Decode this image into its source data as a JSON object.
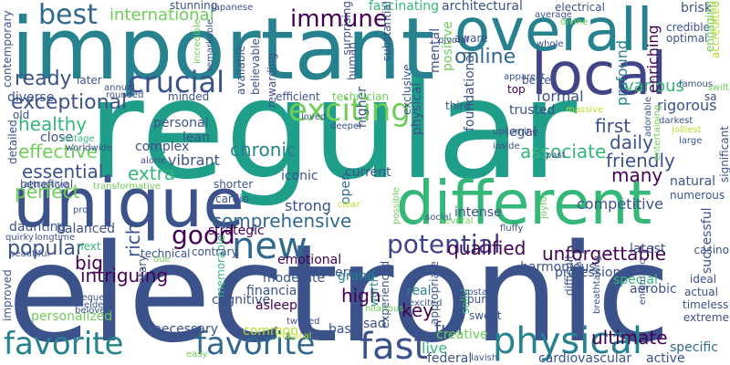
{
  "palette": {
    "purple": "#440154",
    "indigo": "#3b528b",
    "slate": "#414487",
    "blue": "#31688e",
    "teal": "#21918c",
    "cyan": "#26828e",
    "green": "#35b779",
    "lime": "#6ece58",
    "yellow": "#b5de2b",
    "sea": "#1f9e89"
  },
  "words": [
    {
      "text": "electronic",
      "color": "indigo"
    },
    {
      "text": "regular",
      "color": "sea"
    },
    {
      "text": "important",
      "color": "cyan"
    },
    {
      "text": "local",
      "color": "slate"
    },
    {
      "text": "overall",
      "color": "cyan"
    },
    {
      "text": "unique",
      "color": "indigo"
    },
    {
      "text": "different",
      "color": "green"
    },
    {
      "text": "favorite",
      "color": "cyan"
    },
    {
      "text": "favorite",
      "color": "blue"
    },
    {
      "text": "fast",
      "color": "indigo"
    },
    {
      "text": "physical",
      "color": "cyan"
    },
    {
      "text": "new",
      "color": "blue"
    },
    {
      "text": "exciting",
      "color": "lime"
    },
    {
      "text": "crucial",
      "color": "indigo"
    },
    {
      "text": "best",
      "color": "blue"
    },
    {
      "text": "immune",
      "color": "purple"
    },
    {
      "text": "potential",
      "color": "slate"
    },
    {
      "text": "good",
      "color": "purple"
    },
    {
      "text": "comprehensive",
      "color": "blue"
    },
    {
      "text": "international",
      "color": "lime"
    },
    {
      "text": "online",
      "color": "blue"
    },
    {
      "text": "ready",
      "color": "indigo"
    },
    {
      "text": "exceptional",
      "color": "indigo"
    },
    {
      "text": "healthy",
      "color": "green"
    },
    {
      "text": "associate",
      "color": "green"
    },
    {
      "text": "chronic",
      "color": "cyan"
    },
    {
      "text": "popular",
      "color": "indigo"
    },
    {
      "text": "unforgettable",
      "color": "purple"
    },
    {
      "text": "extra",
      "color": "green"
    },
    {
      "text": "effective",
      "color": "lime"
    },
    {
      "text": "essential",
      "color": "indigo"
    },
    {
      "text": "perfect",
      "color": "lime"
    },
    {
      "text": "qualified",
      "color": "purple"
    },
    {
      "text": "ultimate",
      "color": "purple"
    },
    {
      "text": "first",
      "color": "indigo"
    },
    {
      "text": "daily",
      "color": "indigo"
    },
    {
      "text": "friendly",
      "color": "indigo"
    },
    {
      "text": "many",
      "color": "purple"
    },
    {
      "text": "competitive",
      "color": "indigo"
    },
    {
      "text": "strong",
      "color": "indigo"
    },
    {
      "text": "intriguing",
      "color": "purple"
    },
    {
      "text": "full",
      "color": "indigo"
    },
    {
      "text": "key",
      "color": "purple"
    },
    {
      "text": "high",
      "color": "purple"
    },
    {
      "text": "live",
      "color": "green"
    },
    {
      "text": "rich",
      "color": "indigo"
    },
    {
      "text": "big",
      "color": "purple"
    },
    {
      "text": "physical",
      "color": "indigo"
    },
    {
      "text": "mental",
      "color": "indigo"
    },
    {
      "text": "higher",
      "color": "indigo"
    },
    {
      "text": "vibrant",
      "color": "indigo"
    },
    {
      "text": "positive",
      "color": "lime"
    },
    {
      "text": "formal",
      "color": "indigo"
    },
    {
      "text": "various",
      "color": "green"
    },
    {
      "text": "architectural",
      "color": "indigo"
    },
    {
      "text": "fascinating",
      "color": "green"
    },
    {
      "text": "rigorous",
      "color": "indigo"
    },
    {
      "text": "profound",
      "color": "cyan"
    },
    {
      "text": "enriching",
      "color": "purple"
    },
    {
      "text": "latest",
      "color": "indigo"
    },
    {
      "text": "special",
      "color": "green"
    },
    {
      "text": "specific",
      "color": "blue"
    },
    {
      "text": "stunning",
      "color": "indigo"
    },
    {
      "text": "balanced",
      "color": "indigo"
    },
    {
      "text": "close",
      "color": "indigo"
    },
    {
      "text": "cognitive",
      "color": "indigo"
    },
    {
      "text": "financial",
      "color": "indigo"
    },
    {
      "text": "moderate",
      "color": "indigo"
    },
    {
      "text": "asleep",
      "color": "purple"
    },
    {
      "text": "modern",
      "color": "indigo"
    },
    {
      "text": "emotional",
      "color": "purple"
    },
    {
      "text": "strategic",
      "color": "purple"
    },
    {
      "text": "trusted",
      "color": "indigo"
    },
    {
      "text": "top",
      "color": "purple"
    },
    {
      "text": "better",
      "color": "indigo"
    },
    {
      "text": "legal",
      "color": "indigo"
    },
    {
      "text": "personal",
      "color": "indigo"
    },
    {
      "text": "complex",
      "color": "indigo"
    },
    {
      "text": "lean",
      "color": "indigo"
    },
    {
      "text": "open",
      "color": "blue"
    },
    {
      "text": "iconic",
      "color": "indigo"
    },
    {
      "text": "current",
      "color": "indigo"
    },
    {
      "text": "intense",
      "color": "indigo"
    },
    {
      "text": "real",
      "color": "cyan"
    },
    {
      "text": "grand",
      "color": "cyan"
    },
    {
      "text": "sad",
      "color": "indigo"
    },
    {
      "text": "basic",
      "color": "indigo"
    },
    {
      "text": "common",
      "color": "yellow"
    },
    {
      "text": "creative",
      "color": "lime"
    },
    {
      "text": "federal",
      "color": "indigo"
    },
    {
      "text": "cardiovascular",
      "color": "indigo"
    },
    {
      "text": "active",
      "color": "indigo"
    },
    {
      "text": "aerobic",
      "color": "indigo"
    },
    {
      "text": "successful",
      "color": "indigo"
    },
    {
      "text": "professional",
      "color": "indigo"
    },
    {
      "text": "diverse",
      "color": "indigo"
    },
    {
      "text": "old",
      "color": "indigo"
    },
    {
      "text": "detailed",
      "color": "indigo"
    },
    {
      "text": "beneficial",
      "color": "indigo"
    },
    {
      "text": "daunting",
      "color": "indigo"
    },
    {
      "text": "improved",
      "color": "indigo"
    },
    {
      "text": "personalized",
      "color": "lime"
    },
    {
      "text": "necessary",
      "color": "indigo"
    },
    {
      "text": "sedentary",
      "color": "indigo"
    },
    {
      "text": "memorable",
      "color": "green"
    },
    {
      "text": "worth",
      "color": "cyan"
    },
    {
      "text": "experienced",
      "color": "indigo"
    },
    {
      "text": "appropriate",
      "color": "indigo"
    },
    {
      "text": "solid",
      "color": "green"
    },
    {
      "text": "pure",
      "color": "indigo"
    },
    {
      "text": "sweet",
      "color": "indigo"
    },
    {
      "text": "ideal",
      "color": "indigo"
    },
    {
      "text": "actual",
      "color": "indigo"
    },
    {
      "text": "timeless",
      "color": "indigo"
    },
    {
      "text": "extreme",
      "color": "indigo"
    },
    {
      "text": "harmonious",
      "color": "indigo"
    },
    {
      "text": "natural",
      "color": "indigo"
    },
    {
      "text": "numerous",
      "color": "indigo"
    },
    {
      "text": "foundational",
      "color": "indigo"
    },
    {
      "text": "exclusive",
      "color": "indigo"
    },
    {
      "text": "human",
      "color": "indigo"
    },
    {
      "text": "average",
      "color": "indigo"
    },
    {
      "text": "electrical",
      "color": "indigo"
    },
    {
      "text": "brisk",
      "color": "indigo"
    },
    {
      "text": "credible",
      "color": "indigo"
    },
    {
      "text": "optimal",
      "color": "indigo"
    },
    {
      "text": "engaging",
      "color": "lime"
    },
    {
      "text": "accredited",
      "color": "yellow"
    },
    {
      "text": "famous",
      "color": "indigo"
    },
    {
      "text": "contemporary",
      "color": "indigo"
    },
    {
      "text": "later",
      "color": "indigo"
    },
    {
      "text": "annual",
      "color": "indigo"
    },
    {
      "text": "rounded",
      "color": "indigo"
    },
    {
      "text": "minded",
      "color": "indigo"
    },
    {
      "text": "available",
      "color": "indigo"
    },
    {
      "text": "believable",
      "color": "indigo"
    },
    {
      "text": "rewarding",
      "color": "indigo"
    },
    {
      "text": "remarkable",
      "color": "indigo"
    },
    {
      "text": "incredible",
      "color": "lime"
    },
    {
      "text": "efficient",
      "color": "indigo"
    },
    {
      "text": "technician",
      "color": "lime"
    },
    {
      "text": "japanese",
      "color": "indigo"
    },
    {
      "text": "surprising",
      "color": "indigo"
    },
    {
      "text": "substantial",
      "color": "indigo"
    },
    {
      "text": "divine",
      "color": "lime"
    },
    {
      "text": "pivotal",
      "color": "indigo"
    },
    {
      "text": "aware",
      "color": "indigo"
    },
    {
      "text": "whole",
      "color": "indigo"
    },
    {
      "text": "apparent",
      "color": "indigo"
    },
    {
      "text": "massive",
      "color": "yellow"
    },
    {
      "text": "third",
      "color": "indigo"
    },
    {
      "text": "loved",
      "color": "indigo"
    },
    {
      "text": "deeper",
      "color": "indigo"
    },
    {
      "text": "upcoming",
      "color": "indigo"
    },
    {
      "text": "inside",
      "color": "indigo"
    },
    {
      "text": "past",
      "color": "indigo"
    },
    {
      "text": "darkest",
      "color": "indigo"
    },
    {
      "text": "jolliest",
      "color": "yellow"
    },
    {
      "text": "large",
      "color": "indigo"
    },
    {
      "text": "adorable",
      "color": "indigo"
    },
    {
      "text": "entertaining",
      "color": "lime"
    },
    {
      "text": "vintage",
      "color": "green"
    },
    {
      "text": "worldwide",
      "color": "indigo"
    },
    {
      "text": "transformative",
      "color": "lime"
    },
    {
      "text": "shorter",
      "color": "indigo"
    },
    {
      "text": "cardio",
      "color": "indigo"
    },
    {
      "text": "technical",
      "color": "indigo"
    },
    {
      "text": "pro",
      "color": "indigo"
    },
    {
      "text": "quirky",
      "color": "indigo"
    },
    {
      "text": "longtime",
      "color": "indigo"
    },
    {
      "text": "beautiful",
      "color": "indigo"
    },
    {
      "text": "next",
      "color": "green"
    },
    {
      "text": "contrary",
      "color": "indigo"
    },
    {
      "text": "due",
      "color": "lime"
    },
    {
      "text": "alone",
      "color": "indigo"
    },
    {
      "text": "frequent",
      "color": "indigo"
    },
    {
      "text": "elderly",
      "color": "indigo"
    },
    {
      "text": "attractive",
      "color": "indigo"
    },
    {
      "text": "beloved",
      "color": "indigo"
    },
    {
      "text": "easy",
      "color": "lime"
    },
    {
      "text": "twisted",
      "color": "indigo"
    },
    {
      "text": "magical",
      "color": "yellow"
    },
    {
      "text": "hilarious",
      "color": "lime"
    },
    {
      "text": "excited",
      "color": "indigo"
    },
    {
      "text": "upstart",
      "color": "indigo"
    },
    {
      "text": "clear",
      "color": "yellow"
    },
    {
      "text": "social",
      "color": "indigo"
    },
    {
      "text": "several",
      "color": "lime"
    },
    {
      "text": "possible",
      "color": "lime"
    },
    {
      "text": "joyful",
      "color": "lime"
    },
    {
      "text": "fluffy",
      "color": "indigo"
    },
    {
      "text": "difficult",
      "color": "indigo"
    },
    {
      "text": "promotional",
      "color": "indigo"
    },
    {
      "text": "breathtaking",
      "color": "indigo"
    },
    {
      "text": "enigmatic",
      "color": "indigo"
    },
    {
      "text": "lavish",
      "color": "indigo"
    },
    {
      "text": "casino",
      "color": "indigo"
    },
    {
      "text": "significant",
      "color": "indigo"
    },
    {
      "text": "swift",
      "color": "lime"
    },
    {
      "text": "sa",
      "color": "indigo"
    }
  ]
}
